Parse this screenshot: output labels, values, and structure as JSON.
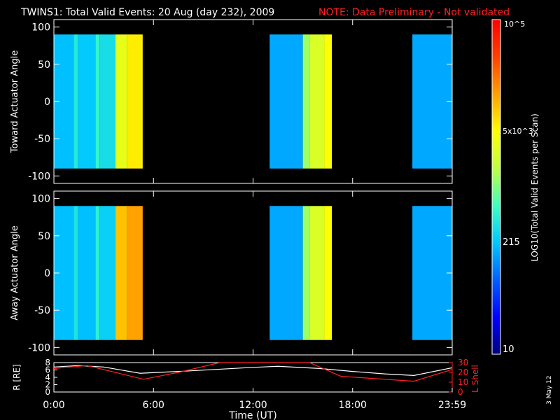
{
  "header": {
    "title": "TWINS1: Total Valid Events: 20 Aug (day 232), 2009",
    "note": "NOTE: Data Preliminary - Not validated"
  },
  "footer": {
    "date_stamp": "3 May 12"
  },
  "colorbar": {
    "label": "LOG10(Total Valid Events per Scan)",
    "tick_labels": [
      "10",
      "215",
      "5x10^3",
      "10^5"
    ],
    "colors": [
      "#000080",
      "#0000ff",
      "#0060ff",
      "#00c8ff",
      "#40ffc0",
      "#c0ff40",
      "#ffff00",
      "#ffa000",
      "#ff4000",
      "#ff0000"
    ]
  },
  "chart_data": [
    {
      "type": "heatmap",
      "panel": "top",
      "ylabel": "Toward Actuator Angle",
      "ylim": [
        -110,
        110
      ],
      "y_ticks": [
        -100,
        -50,
        0,
        50,
        100
      ],
      "y_data_range": [
        -90,
        90
      ],
      "x_range_hours": [
        0,
        24
      ],
      "log_range": [
        1,
        5
      ],
      "columns": [
        {
          "t0": 0.0,
          "t1": 1.2,
          "v": 2.3
        },
        {
          "t0": 1.2,
          "t1": 1.45,
          "v": 2.6
        },
        {
          "t0": 1.45,
          "t1": 2.5,
          "v": 2.35
        },
        {
          "t0": 2.5,
          "t1": 2.75,
          "v": 2.7
        },
        {
          "t0": 2.75,
          "t1": 3.7,
          "v": 2.5
        },
        {
          "t0": 3.7,
          "t1": 4.4,
          "v": 3.5
        },
        {
          "t0": 4.4,
          "t1": 5.35,
          "v": 3.75
        },
        {
          "t0": 13.0,
          "t1": 15.0,
          "v": 2.2
        },
        {
          "t0": 15.0,
          "t1": 15.4,
          "v": 3.1
        },
        {
          "t0": 15.4,
          "t1": 16.3,
          "v": 3.4
        },
        {
          "t0": 16.3,
          "t1": 16.75,
          "v": 3.65
        },
        {
          "t0": 21.6,
          "t1": 24.0,
          "v": 2.2
        }
      ]
    },
    {
      "type": "heatmap",
      "panel": "middle",
      "ylabel": "Away Actuator Angle",
      "ylim": [
        -110,
        110
      ],
      "y_ticks": [
        -100,
        -50,
        0,
        50,
        100
      ],
      "y_data_range": [
        -90,
        90
      ],
      "x_range_hours": [
        0,
        24
      ],
      "log_range": [
        1,
        5
      ],
      "columns": [
        {
          "t0": 0.0,
          "t1": 1.2,
          "v": 2.3
        },
        {
          "t0": 1.2,
          "t1": 1.45,
          "v": 2.55
        },
        {
          "t0": 1.45,
          "t1": 2.5,
          "v": 2.3
        },
        {
          "t0": 2.5,
          "t1": 2.75,
          "v": 2.65
        },
        {
          "t0": 2.75,
          "t1": 3.7,
          "v": 2.4
        },
        {
          "t0": 3.7,
          "t1": 4.4,
          "v": 3.95
        },
        {
          "t0": 4.4,
          "t1": 5.35,
          "v": 4.1
        },
        {
          "t0": 13.0,
          "t1": 15.0,
          "v": 2.2
        },
        {
          "t0": 15.0,
          "t1": 15.4,
          "v": 3.1
        },
        {
          "t0": 15.4,
          "t1": 16.3,
          "v": 3.4
        },
        {
          "t0": 16.3,
          "t1": 16.75,
          "v": 3.65
        },
        {
          "t0": 21.6,
          "t1": 24.0,
          "v": 2.2
        }
      ]
    },
    {
      "type": "line",
      "panel": "bottom",
      "xlabel": "Time (UT)",
      "x_tick_labels": [
        "0:00",
        "6:00",
        "12:00",
        "18:00",
        "23:59"
      ],
      "x_ticks_hours": [
        0,
        6,
        12,
        18,
        24
      ],
      "series": [
        {
          "name": "R [RE]",
          "axis": "left",
          "ylim": [
            0,
            8
          ],
          "y_ticks": [
            0,
            2,
            4,
            6,
            8
          ],
          "color": "#ffffff",
          "x": [
            0,
            1.5,
            3,
            5.2,
            8,
            12,
            13.5,
            16,
            18,
            20,
            21.7,
            24
          ],
          "y": [
            6.8,
            7.2,
            6.8,
            5.1,
            5.7,
            6.7,
            7.0,
            6.4,
            5.6,
            4.9,
            4.5,
            6.6
          ]
        },
        {
          "name": "L Shell",
          "axis": "right",
          "ylim": [
            0,
            30
          ],
          "y_ticks": [
            0,
            10,
            20,
            30
          ],
          "color": "#ff2020",
          "x": [
            0,
            2,
            5.4,
            7.5,
            10,
            15.4,
            17.3,
            21.7,
            24
          ],
          "y": [
            24,
            27,
            13,
            20,
            30,
            30,
            16,
            11,
            23
          ]
        }
      ]
    }
  ]
}
